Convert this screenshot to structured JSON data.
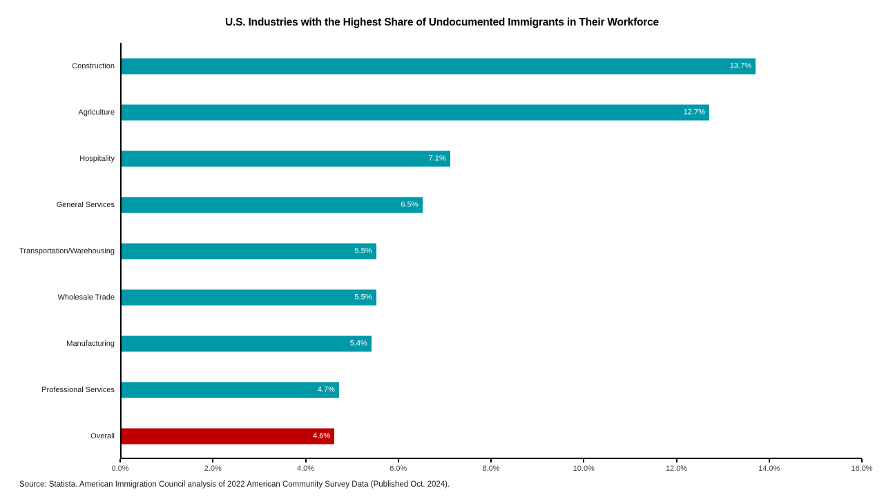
{
  "title": "U.S. Industries with the Highest Share of Undocumented Immigrants in Their Workforce",
  "source": "Source: Statista. American Immigration Council analysis of 2022 American Community Survey Data (Published Oct. 2024).",
  "colors": {
    "bar": "#0099A8",
    "highlight_bar": "#C00000",
    "axis": "#000000",
    "tick_label": "#404040",
    "value_label": "#FFFFFF",
    "background": "#FFFFFF"
  },
  "chart_data": {
    "type": "bar",
    "orientation": "horizontal",
    "title": "U.S. Industries with the Highest Share of Undocumented Immigrants in Their Workforce",
    "categories": [
      "Construction",
      "Agriculture",
      "Hospitality",
      "General Services",
      "Transportation/Warehousing",
      "Wholesale Trade",
      "Manufacturing",
      "Professional Services",
      "Overall"
    ],
    "values": [
      13.7,
      12.7,
      7.1,
      6.5,
      5.5,
      5.5,
      5.4,
      4.7,
      4.6
    ],
    "value_labels": [
      "13.7%",
      "12.7%",
      "7.1%",
      "6.5%",
      "5.5%",
      "5.5%",
      "5.4%",
      "4.7%",
      "4.6%"
    ],
    "highlight_category": "Overall",
    "xlabel": "",
    "ylabel": "",
    "xlim": [
      0,
      16
    ],
    "x_tick_values": [
      0,
      2,
      4,
      6,
      8,
      10,
      12,
      14,
      16
    ],
    "x_tick_labels": [
      "0.0%",
      "2.0%",
      "4.0%",
      "6.0%",
      "8.0%",
      "10.0%",
      "12.0%",
      "14.0%",
      "16.0%"
    ],
    "grid": false,
    "legend": false,
    "value_labels_position": "inside-end"
  }
}
